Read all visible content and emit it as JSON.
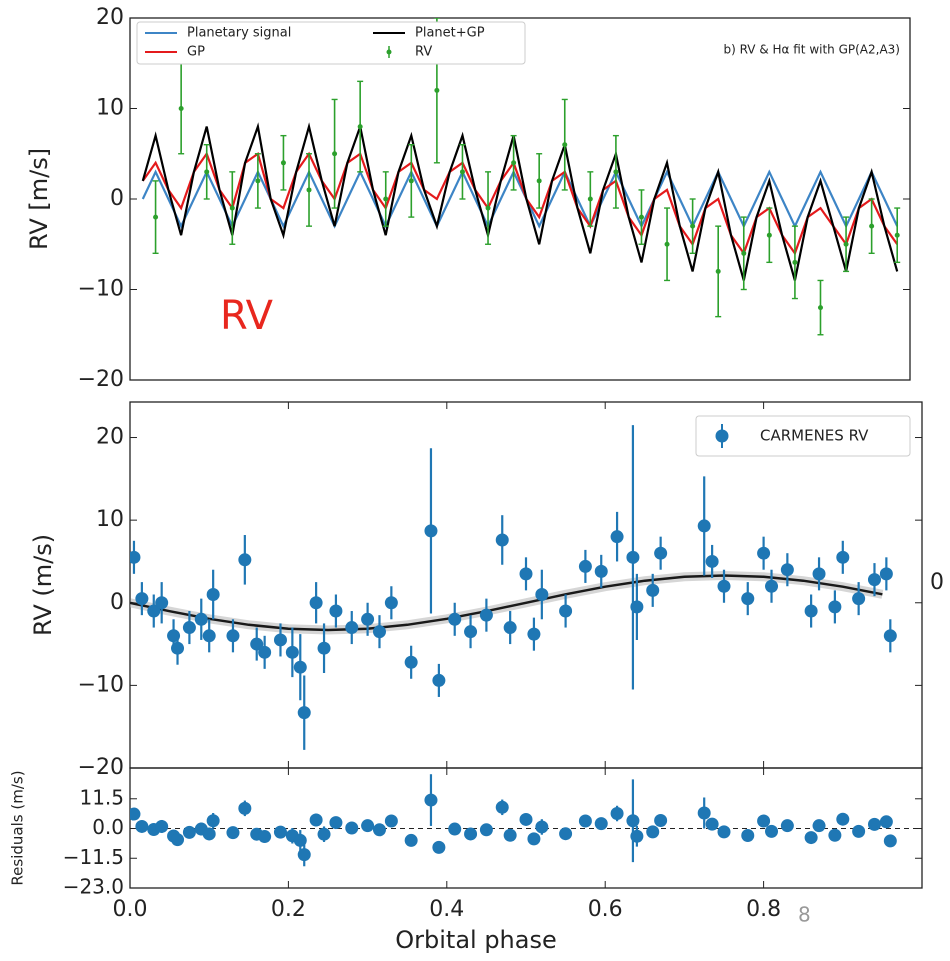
{
  "chart_data": [
    {
      "type": "line",
      "y_label": "RV [m/s]",
      "annotation": "b) RV & Hα fit with GP(A2,A3)",
      "overlay_text": "RV",
      "overlay_color": "#e8271e",
      "legend": "upper left",
      "xlim": [
        -1,
        60
      ],
      "ylim": [
        -20,
        20
      ],
      "yticks": [
        {
          "value": -20,
          "label": "−20"
        },
        {
          "value": -10,
          "label": "−10"
        },
        0,
        10,
        20
      ],
      "series": [
        {
          "name": "Planetary signal",
          "color": "#3d85c6",
          "kind": "line",
          "x": [
            0,
            1,
            2,
            3,
            4,
            5,
            6,
            7,
            8,
            9,
            10,
            11,
            12,
            13,
            14,
            15,
            16,
            17,
            18,
            19,
            20,
            21,
            22,
            23,
            24,
            25,
            26,
            27,
            28,
            29,
            30,
            31,
            32,
            33,
            34,
            35,
            36,
            37,
            38,
            39,
            40,
            41,
            42,
            43,
            44,
            45,
            46,
            47,
            48,
            49,
            50,
            51,
            52,
            53,
            54,
            55,
            56,
            57,
            58,
            59
          ],
          "values": [
            0,
            3,
            0,
            -3,
            0,
            3,
            0,
            -3,
            0,
            3,
            0,
            -3,
            0,
            3,
            0,
            -3,
            0,
            3,
            0,
            -3,
            0,
            3,
            0,
            -3,
            0,
            3,
            0,
            -3,
            0,
            3,
            0,
            -3,
            0,
            3,
            0,
            -3,
            0,
            3,
            0,
            -3,
            0,
            3,
            0,
            -3,
            0,
            3,
            0,
            -3,
            0,
            3,
            0,
            -3,
            0,
            3,
            0,
            -3,
            0,
            3,
            0,
            -3
          ]
        },
        {
          "name": "GP",
          "color": "#e41a1c",
          "kind": "line",
          "x": [
            0,
            1,
            2,
            3,
            4,
            5,
            6,
            7,
            8,
            9,
            10,
            11,
            12,
            13,
            14,
            15,
            16,
            17,
            18,
            19,
            20,
            21,
            22,
            23,
            24,
            25,
            26,
            27,
            28,
            29,
            30,
            31,
            32,
            33,
            34,
            35,
            36,
            37,
            38,
            39,
            40,
            41,
            42,
            43,
            44,
            45,
            46,
            47,
            48,
            49,
            50,
            51,
            52,
            53,
            54,
            55,
            56,
            57,
            58,
            59
          ],
          "values": [
            2,
            4,
            1,
            -1,
            3,
            5,
            1,
            -1,
            4,
            5,
            0,
            -1,
            3,
            5,
            2,
            0,
            4,
            5,
            1,
            -1,
            3,
            4,
            1,
            0,
            3,
            4,
            1,
            -1,
            2,
            4,
            0,
            -2,
            2,
            3,
            -1,
            -3,
            1,
            2,
            -2,
            -4,
            0,
            1,
            -3,
            -5,
            -1,
            0,
            -4,
            -6,
            -2,
            -1,
            -4,
            -6,
            -2,
            -1,
            -3,
            -5,
            -1,
            0,
            -3,
            -5
          ]
        },
        {
          "name": "Planet+GP",
          "color": "#000000",
          "kind": "line",
          "x": [
            0,
            1,
            2,
            3,
            4,
            5,
            6,
            7,
            8,
            9,
            10,
            11,
            12,
            13,
            14,
            15,
            16,
            17,
            18,
            19,
            20,
            21,
            22,
            23,
            24,
            25,
            26,
            27,
            28,
            29,
            30,
            31,
            32,
            33,
            34,
            35,
            36,
            37,
            38,
            39,
            40,
            41,
            42,
            43,
            44,
            45,
            46,
            47,
            48,
            49,
            50,
            51,
            52,
            53,
            54,
            55,
            56,
            57,
            58,
            59
          ],
          "values": [
            2,
            7,
            1,
            -4,
            3,
            8,
            1,
            -4,
            4,
            8,
            0,
            -4,
            3,
            8,
            2,
            -3,
            4,
            8,
            1,
            -4,
            3,
            7,
            1,
            -3,
            3,
            7,
            1,
            -4,
            2,
            7,
            0,
            -5,
            2,
            6,
            -1,
            -6,
            1,
            5,
            -2,
            -7,
            0,
            4,
            -3,
            -8,
            -1,
            3,
            -4,
            -9,
            -2,
            2,
            -4,
            -9,
            -2,
            2,
            -3,
            -8,
            -1,
            3,
            -3,
            -8
          ]
        },
        {
          "name": "RV",
          "color": "#2ca02c",
          "kind": "errorbar",
          "x": [
            1,
            3,
            5,
            7,
            9,
            11,
            13,
            15,
            17,
            19,
            21,
            23,
            25,
            27,
            29,
            31,
            33,
            35,
            37,
            39,
            41,
            43,
            45,
            47,
            49,
            51,
            53,
            55,
            57,
            59
          ],
          "values": [
            -2,
            10,
            3,
            -1,
            2,
            4,
            1,
            5,
            8,
            0,
            2,
            12,
            3,
            -1,
            4,
            2,
            6,
            0,
            3,
            -2,
            -5,
            -3,
            -8,
            -6,
            -4,
            -7,
            -12,
            -5,
            -3,
            -4
          ],
          "errors": [
            4,
            5,
            3,
            4,
            3,
            3,
            4,
            6,
            5,
            3,
            4,
            8,
            3,
            4,
            3,
            3,
            5,
            3,
            4,
            3,
            4,
            3,
            5,
            4,
            3,
            4,
            3,
            3,
            3,
            3
          ]
        }
      ]
    },
    {
      "type": "errorbar",
      "y_label": "RV (m/s)",
      "legend": "upper right",
      "xlim": [
        0,
        1
      ],
      "ylim": [
        -20,
        24.3
      ],
      "yticks": [
        {
          "value": -20,
          "label": "−20"
        },
        {
          "value": -10,
          "label": "−10"
        },
        0,
        10,
        20
      ],
      "series": [
        {
          "name": "CARMENES RV",
          "color": "#1f77b4",
          "x": [
            0.005,
            0.015,
            0.03,
            0.04,
            0.055,
            0.06,
            0.075,
            0.09,
            0.1,
            0.105,
            0.13,
            0.145,
            0.16,
            0.17,
            0.19,
            0.205,
            0.215,
            0.22,
            0.235,
            0.245,
            0.26,
            0.28,
            0.3,
            0.315,
            0.33,
            0.355,
            0.38,
            0.39,
            0.41,
            0.43,
            0.45,
            0.47,
            0.48,
            0.5,
            0.51,
            0.52,
            0.55,
            0.575,
            0.595,
            0.615,
            0.635,
            0.64,
            0.66,
            0.67,
            0.725,
            0.735,
            0.75,
            0.78,
            0.8,
            0.81,
            0.83,
            0.86,
            0.87,
            0.89,
            0.9,
            0.92,
            0.94,
            0.955,
            0.96
          ],
          "values": [
            5.5,
            0.5,
            -1,
            0,
            -4,
            -5.5,
            -3,
            -2,
            -4,
            1,
            -4,
            5.2,
            -5,
            -6,
            -4.5,
            -6,
            -7.8,
            -13.3,
            0,
            -5.5,
            -1,
            -3,
            -2,
            -3.5,
            0,
            -7.2,
            8.7,
            -9.4,
            -2,
            -3.5,
            -1.5,
            7.6,
            -3,
            3.5,
            -3.8,
            1,
            -1,
            4.4,
            3.8,
            8,
            5.5,
            -0.5,
            1.5,
            6,
            9.3,
            5,
            2,
            0.5,
            6,
            2,
            4,
            -1,
            3.5,
            -0.5,
            5.5,
            0.5,
            2.8,
            3.5,
            -4
          ],
          "errors": [
            2,
            2,
            2,
            2.5,
            2,
            2,
            2,
            2.5,
            2,
            3,
            2,
            3,
            2,
            2,
            2,
            3,
            4,
            4.5,
            2.5,
            3,
            2,
            2,
            2,
            2,
            2,
            2,
            10,
            2,
            2,
            2,
            2,
            3,
            2,
            2,
            2,
            3,
            2,
            2,
            2,
            3,
            16,
            4,
            2,
            2,
            6,
            2,
            2,
            2,
            2,
            2,
            2,
            2,
            2,
            2,
            2,
            2,
            2,
            2,
            2
          ]
        }
      ],
      "model": {
        "color": "#1a1a1a",
        "x": [
          0,
          0.05,
          0.1,
          0.15,
          0.2,
          0.25,
          0.3,
          0.35,
          0.4,
          0.45,
          0.5,
          0.55,
          0.6,
          0.65,
          0.7,
          0.75,
          0.8,
          0.85,
          0.9,
          0.95
        ],
        "values": [
          0,
          -1.02,
          -1.94,
          -2.67,
          -3.14,
          -3.3,
          -3.14,
          -2.67,
          -1.94,
          -1.02,
          0,
          1.02,
          1.94,
          2.67,
          3.14,
          3.3,
          3.14,
          2.67,
          1.94,
          1.02
        ]
      }
    },
    {
      "type": "errorbar",
      "x_label": "Orbital phase",
      "y_label": "Residuals (m/s)",
      "zero_line": true,
      "xlim": [
        0,
        1
      ],
      "ylim": [
        -23,
        23.4
      ],
      "xticks": [
        {
          "value": 0,
          "label": "0.0"
        },
        0.2,
        0.4,
        0.6,
        0.8
      ],
      "yticks": [
        {
          "value": -23,
          "label": "−23.0"
        },
        {
          "value": -11.5,
          "label": "−11.5"
        },
        {
          "value": 0,
          "label": "0.0"
        },
        11.5
      ],
      "series": [
        {
          "color": "#1f77b4",
          "x": [
            0.005,
            0.015,
            0.03,
            0.04,
            0.055,
            0.06,
            0.075,
            0.09,
            0.1,
            0.105,
            0.13,
            0.145,
            0.16,
            0.17,
            0.19,
            0.205,
            0.215,
            0.22,
            0.235,
            0.245,
            0.26,
            0.28,
            0.3,
            0.315,
            0.33,
            0.355,
            0.38,
            0.39,
            0.41,
            0.43,
            0.45,
            0.47,
            0.48,
            0.5,
            0.51,
            0.52,
            0.55,
            0.575,
            0.595,
            0.615,
            0.635,
            0.64,
            0.66,
            0.67,
            0.725,
            0.735,
            0.75,
            0.78,
            0.8,
            0.81,
            0.83,
            0.86,
            0.87,
            0.89,
            0.9,
            0.92,
            0.94,
            0.955,
            0.96
          ],
          "values": [
            5.6,
            0.8,
            -0.4,
            0.8,
            -2.9,
            -4.3,
            -1.5,
            -0.2,
            -2.1,
            3,
            -1.6,
            7.8,
            -2.2,
            -3.1,
            -1.4,
            -2.8,
            -4.6,
            -10.1,
            3.3,
            -2.2,
            2.3,
            0.2,
            1.1,
            -0.5,
            2.9,
            -4.6,
            11,
            -7.3,
            -0.2,
            -2.1,
            -0.5,
            8.2,
            -2.6,
            3.5,
            -4,
            0.6,
            -2,
            2.9,
            1.9,
            5.8,
            3,
            -3,
            -1.3,
            3.1,
            6,
            1.7,
            -1.3,
            -2.7,
            2.9,
            -1.1,
            1.1,
            -3.5,
            1.1,
            -2.6,
            3.6,
            -1.1,
            1.6,
            2.6,
            -4.8
          ],
          "errors": [
            2,
            2,
            2,
            2.5,
            2,
            2,
            2,
            2.5,
            2,
            3,
            2,
            3,
            2,
            2,
            2,
            3,
            4,
            4.5,
            2.5,
            3,
            2,
            2,
            2,
            2,
            2,
            2,
            10,
            2,
            2,
            2,
            2,
            3,
            2,
            2,
            2,
            3,
            2,
            2,
            2,
            3,
            16,
            4,
            2,
            2,
            6,
            2,
            2,
            2,
            2,
            2,
            2,
            2,
            2,
            2,
            2,
            2,
            2,
            2,
            2
          ]
        }
      ]
    }
  ],
  "stray_labels": [
    "0",
    "8"
  ]
}
